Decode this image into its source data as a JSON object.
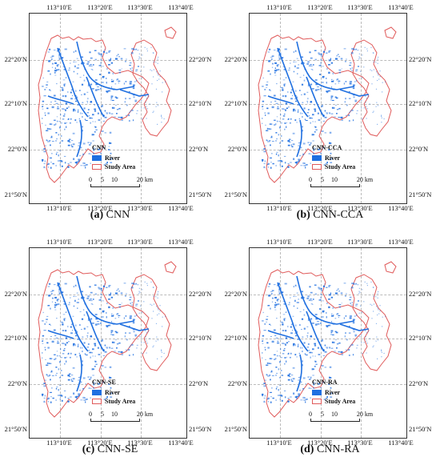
{
  "axes": {
    "longitude_labels": [
      "113°10′E",
      "113°20′E",
      "113°30′E",
      "113°40′E"
    ],
    "latitude_labels": [
      "22°20′N",
      "22°10′N",
      "22°0′N",
      "21°50′N"
    ]
  },
  "legend": {
    "river_label": "River",
    "study_area_label": "Study Area",
    "river_color": "#1f6fe0",
    "study_area_color": "#e05a5a"
  },
  "scalebar": {
    "ticks": [
      "0",
      "5",
      "10",
      "20"
    ],
    "unit": "km"
  },
  "panels": [
    {
      "letter": "(a)",
      "name": "CNN",
      "legend_title": "CNN"
    },
    {
      "letter": "(b)",
      "name": "CNN-CCA",
      "legend_title": "CNN-CCA"
    },
    {
      "letter": "(c)",
      "name": "CNN-SE",
      "legend_title": "CNN-SE"
    },
    {
      "letter": "(d)",
      "name": "CNN-RA",
      "legend_title": "CNN-RA"
    }
  ]
}
